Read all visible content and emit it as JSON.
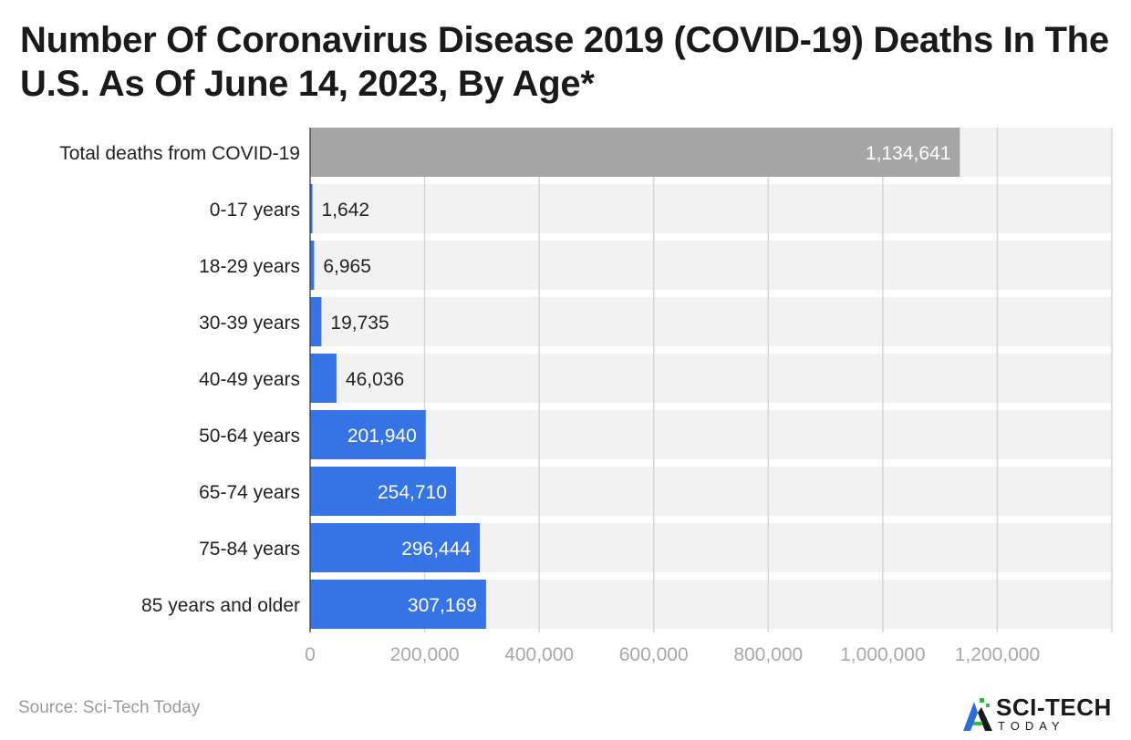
{
  "chart_data": {
    "type": "bar",
    "orientation": "horizontal",
    "title": "Number Of Coronavirus Disease 2019 (COVID-19) Deaths In The U.S. As Of June 14, 2023, By Age*",
    "categories": [
      "Total deaths from COVID-19",
      "0-17 years",
      "18-29 years",
      "30-39 years",
      "40-49 years",
      "50-64 years",
      "65-74 years",
      "75-84 years",
      "85 years and older"
    ],
    "values": [
      1134641,
      1642,
      6965,
      19735,
      46036,
      201940,
      254710,
      296444,
      307169
    ],
    "value_labels": [
      "1,134,641",
      "1,642",
      "6,965",
      "19,735",
      "46,036",
      "201,940",
      "254,710",
      "296,444",
      "307,169"
    ],
    "xlim": [
      0,
      1400000
    ],
    "xticks": [
      0,
      200000,
      400000,
      600000,
      800000,
      1000000,
      1200000
    ],
    "xtick_labels": [
      "0",
      "200,000",
      "400,000",
      "600,000",
      "800,000",
      "1,000,000",
      "1,200,000"
    ],
    "xlabel": "",
    "ylabel": "",
    "grid": true,
    "colors": {
      "total": "#a6a6a6",
      "bar": "#3674e6",
      "row_background": "#f2f2f2",
      "gridline": "#d6d6d6",
      "label_inside": "#ffffff",
      "label_outside": "#222222"
    }
  },
  "source": "Source: Sci-Tech Today",
  "brand": {
    "name": "SCI-TECH",
    "sub": "TODAY",
    "mark_colors": [
      "#2b6fd6",
      "#39b54a",
      "#1a1a1a"
    ]
  }
}
